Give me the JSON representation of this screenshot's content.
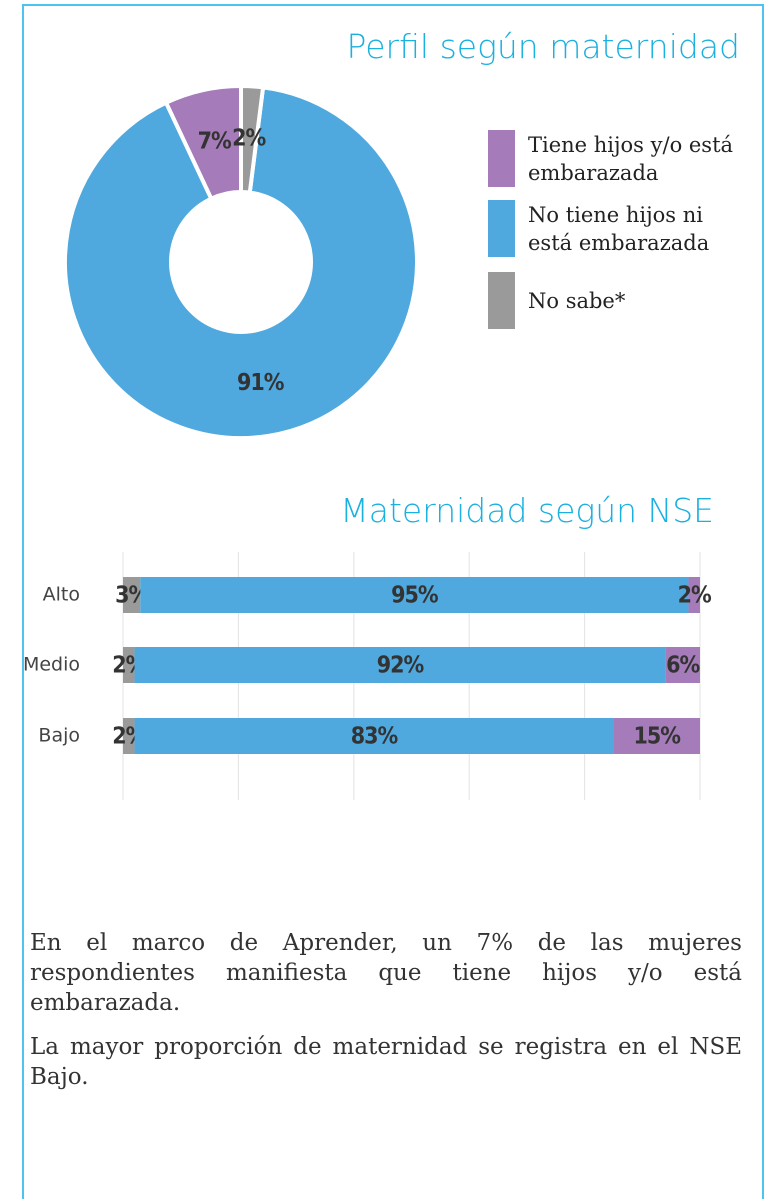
{
  "chart_data": [
    {
      "type": "donut",
      "title": "Perfil según maternidad",
      "categories": [
        "Tiene hijos y/o está embarazada",
        "No tiene hijos ni está embarazada",
        "No sabe*"
      ],
      "values": [
        7,
        91,
        2
      ],
      "value_labels": [
        "7%",
        "91%",
        "2%"
      ],
      "colors": [
        "#a57cb9",
        "#4fa8de",
        "#9a9a9a"
      ]
    },
    {
      "type": "stacked-barh",
      "title": "Maternidad según NSE",
      "categories": [
        "Alto",
        "Medio",
        "Bajo"
      ],
      "series": [
        {
          "color": "#9a9a9a",
          "values": [
            3,
            2,
            2
          ],
          "value_labels": [
            "3%",
            "2%",
            "2%"
          ]
        },
        {
          "color": "#4fa8de",
          "values": [
            95,
            92,
            83
          ],
          "value_labels": [
            "95%",
            "92%",
            "83%"
          ]
        },
        {
          "color": "#a57cb9",
          "values": [
            2,
            6,
            15
          ],
          "value_labels": [
            "2%",
            "6%",
            "15%"
          ]
        }
      ],
      "xlim": [
        0,
        100
      ],
      "xticks": [
        0,
        20,
        40,
        60,
        80,
        100
      ],
      "grid": true
    }
  ],
  "body": {
    "paragraphs": [
      "En el marco de Aprender, un 7% de las mujeres respondientes manifiesta que tiene hijos y/o está embarazada.",
      "La mayor proporción de maternidad se registra en el NSE Bajo."
    ]
  }
}
